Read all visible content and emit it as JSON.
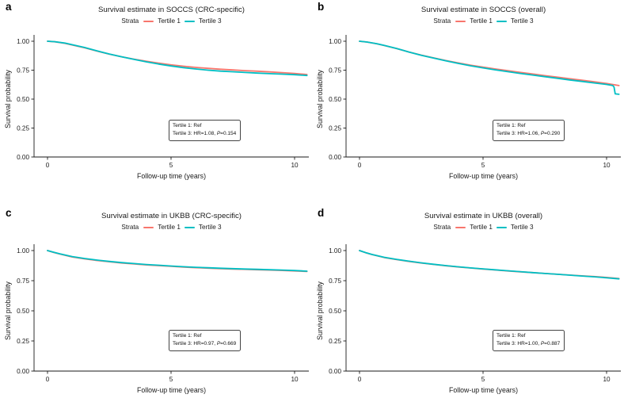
{
  "panel_labels": [
    "a",
    "b",
    "c",
    "d"
  ],
  "legend": {
    "title": "Strata",
    "items": [
      "Tertile 1",
      "Tertile 3"
    ]
  },
  "axes": {
    "x_label": "Follow-up time (years)",
    "y_label": "Survival probability",
    "y_ticks": [
      "1.00",
      "0.75",
      "0.50",
      "0.25",
      "0.00"
    ],
    "x_ticks": [
      "0",
      "5",
      "10"
    ]
  },
  "colors": {
    "tertile1": "#F8766D",
    "tertile3": "#00BFC4",
    "axis": "#1a1a1a"
  },
  "annotations": [
    {
      "line1": "Tertile 1: Ref",
      "line2_pre": "Tertile 3: HR=1.08, ",
      "p_italic": "P",
      "line2_post": "=0.154"
    },
    {
      "line1": "Tertile 1: Ref",
      "line2_pre": "Tertile 3: HR=1.06, ",
      "p_italic": "P",
      "line2_post": "=0.290"
    },
    {
      "line1": "Tertile 1: Ref",
      "line2_pre": "Tertile 3: HR=0.97, ",
      "p_italic": "P",
      "line2_post": "=0.669"
    },
    {
      "line1": "Tertile 1: Ref",
      "line2_pre": "Tertile 3: HR=1.00, ",
      "p_italic": "P",
      "line2_post": "=0.887"
    }
  ],
  "chart_data": [
    {
      "type": "line",
      "title": "Survival estimate in SOCCS (CRC-specific)",
      "xlabel": "Follow-up time (years)",
      "ylabel": "Survival probability",
      "xlim": [
        0,
        10.5
      ],
      "ylim": [
        0,
        1
      ],
      "x_tick_values": [
        0,
        5,
        10
      ],
      "y_tick_values": [
        1,
        0.75,
        0.5,
        0.25,
        0
      ],
      "legend_title": "Strata",
      "legend_position": "top",
      "grid": false,
      "annotation": [
        "Tertile 1: Ref",
        "Tertile 3: HR=1.08, P=0.154"
      ],
      "series": [
        {
          "name": "Tertile 1",
          "color": "#F8766D",
          "x": [
            0,
            0.3,
            0.7,
            1,
            1.5,
            2,
            2.5,
            3,
            3.5,
            4,
            4.5,
            5,
            5.5,
            6,
            6.5,
            7,
            7.5,
            8,
            8.5,
            9,
            9.5,
            10,
            10.5
          ],
          "y": [
            1.0,
            0.995,
            0.982,
            0.968,
            0.944,
            0.915,
            0.889,
            0.866,
            0.845,
            0.827,
            0.81,
            0.796,
            0.784,
            0.774,
            0.766,
            0.758,
            0.752,
            0.746,
            0.741,
            0.735,
            0.729,
            0.722,
            0.712
          ]
        },
        {
          "name": "Tertile 3",
          "color": "#00BFC4",
          "x": [
            0,
            0.3,
            0.7,
            1,
            1.5,
            2,
            2.5,
            3,
            3.5,
            4,
            4.5,
            5,
            5.5,
            6,
            6.5,
            7,
            7.5,
            8,
            8.5,
            9,
            9.5,
            10,
            10.5
          ],
          "y": [
            1.0,
            0.996,
            0.984,
            0.97,
            0.946,
            0.917,
            0.89,
            0.866,
            0.843,
            0.822,
            0.803,
            0.786,
            0.772,
            0.76,
            0.75,
            0.742,
            0.736,
            0.73,
            0.725,
            0.72,
            0.716,
            0.711,
            0.704
          ]
        }
      ]
    },
    {
      "type": "line",
      "title": "Survival estimate in SOCCS (overall)",
      "xlabel": "Follow-up time (years)",
      "ylabel": "Survival probability",
      "xlim": [
        0,
        10.5
      ],
      "ylim": [
        0,
        1
      ],
      "x_tick_values": [
        0,
        5,
        10
      ],
      "y_tick_values": [
        1,
        0.75,
        0.5,
        0.25,
        0
      ],
      "legend_title": "Strata",
      "legend_position": "top",
      "grid": false,
      "annotation": [
        "Tertile 1: Ref",
        "Tertile 3: HR=1.06, P=0.290"
      ],
      "series": [
        {
          "name": "Tertile 1",
          "color": "#F8766D",
          "x": [
            0,
            0.3,
            0.7,
            1,
            1.5,
            2,
            2.5,
            3,
            3.5,
            4,
            4.5,
            5,
            5.5,
            6,
            6.5,
            7,
            7.5,
            8,
            8.5,
            9,
            9.5,
            10,
            10.5
          ],
          "y": [
            1.0,
            0.993,
            0.978,
            0.963,
            0.937,
            0.907,
            0.88,
            0.856,
            0.833,
            0.812,
            0.793,
            0.776,
            0.76,
            0.745,
            0.731,
            0.717,
            0.703,
            0.69,
            0.676,
            0.663,
            0.649,
            0.635,
            0.617
          ]
        },
        {
          "name": "Tertile 3",
          "color": "#00BFC4",
          "x": [
            0,
            0.3,
            0.7,
            1,
            1.5,
            2,
            2.5,
            3,
            3.5,
            4,
            4.5,
            5,
            5.5,
            6,
            6.5,
            7,
            7.5,
            8,
            8.5,
            9,
            9.5,
            10,
            10.25,
            10.3,
            10.35,
            10.5
          ],
          "y": [
            1.0,
            0.993,
            0.979,
            0.964,
            0.938,
            0.907,
            0.879,
            0.854,
            0.83,
            0.808,
            0.788,
            0.77,
            0.753,
            0.737,
            0.722,
            0.708,
            0.694,
            0.68,
            0.666,
            0.653,
            0.64,
            0.627,
            0.617,
            0.605,
            0.545,
            0.542
          ]
        }
      ]
    },
    {
      "type": "line",
      "title": "Survival estimate in UKBB (CRC-specific)",
      "xlabel": "Follow-up time (years)",
      "ylabel": "Survival probability",
      "xlim": [
        0,
        10.5
      ],
      "ylim": [
        0,
        1
      ],
      "x_tick_values": [
        0,
        5,
        10
      ],
      "y_tick_values": [
        1,
        0.75,
        0.5,
        0.25,
        0
      ],
      "legend_title": "Strata",
      "legend_position": "top",
      "grid": false,
      "annotation": [
        "Tertile 1: Ref",
        "Tertile 3: HR=0.97, P=0.669"
      ],
      "series": [
        {
          "name": "Tertile 1",
          "color": "#F8766D",
          "x": [
            0,
            0.25,
            0.5,
            1,
            1.5,
            2,
            2.5,
            3,
            3.5,
            4,
            4.5,
            5,
            5.5,
            6,
            6.5,
            7,
            7.5,
            8,
            8.5,
            9,
            9.5,
            10,
            10.5
          ],
          "y": [
            1.0,
            0.984,
            0.971,
            0.947,
            0.931,
            0.918,
            0.907,
            0.897,
            0.889,
            0.881,
            0.875,
            0.869,
            0.863,
            0.858,
            0.854,
            0.85,
            0.847,
            0.844,
            0.841,
            0.838,
            0.835,
            0.831,
            0.826
          ]
        },
        {
          "name": "Tertile 3",
          "color": "#00BFC4",
          "x": [
            0,
            0.25,
            0.5,
            1,
            1.5,
            2,
            2.5,
            3,
            3.5,
            4,
            4.5,
            5,
            5.5,
            6,
            6.5,
            7,
            7.5,
            8,
            8.5,
            9,
            9.5,
            10,
            10.5
          ],
          "y": [
            1.0,
            0.986,
            0.973,
            0.95,
            0.934,
            0.921,
            0.91,
            0.9,
            0.892,
            0.884,
            0.878,
            0.872,
            0.866,
            0.861,
            0.857,
            0.853,
            0.85,
            0.847,
            0.844,
            0.841,
            0.838,
            0.834,
            0.829
          ]
        }
      ]
    },
    {
      "type": "line",
      "title": "Survival estimate in UKBB (overall)",
      "xlabel": "Follow-up time (years)",
      "ylabel": "Survival probability",
      "xlim": [
        0,
        10.5
      ],
      "ylim": [
        0,
        1
      ],
      "x_tick_values": [
        0,
        5,
        10
      ],
      "y_tick_values": [
        1,
        0.75,
        0.5,
        0.25,
        0
      ],
      "legend_title": "Strata",
      "legend_position": "top",
      "grid": false,
      "annotation": [
        "Tertile 1: Ref",
        "Tertile 3: HR=1.00, P=0.887"
      ],
      "series": [
        {
          "name": "Tertile 1",
          "color": "#F8766D",
          "x": [
            0,
            0.25,
            0.5,
            1,
            1.5,
            2,
            2.5,
            3,
            3.5,
            4,
            4.5,
            5,
            5.5,
            6,
            6.5,
            7,
            7.5,
            8,
            8.5,
            9,
            9.5,
            10,
            10.5
          ],
          "y": [
            1.0,
            0.982,
            0.967,
            0.942,
            0.925,
            0.91,
            0.897,
            0.885,
            0.874,
            0.864,
            0.855,
            0.847,
            0.839,
            0.831,
            0.824,
            0.817,
            0.81,
            0.803,
            0.797,
            0.79,
            0.784,
            0.777,
            0.768
          ]
        },
        {
          "name": "Tertile 3",
          "color": "#00BFC4",
          "x": [
            0,
            0.25,
            0.5,
            1,
            1.5,
            2,
            2.5,
            3,
            3.5,
            4,
            4.5,
            5,
            5.5,
            6,
            6.5,
            7,
            7.5,
            8,
            8.5,
            9,
            9.5,
            10,
            10.5
          ],
          "y": [
            1.0,
            0.983,
            0.968,
            0.944,
            0.927,
            0.912,
            0.898,
            0.886,
            0.875,
            0.865,
            0.856,
            0.848,
            0.84,
            0.832,
            0.825,
            0.817,
            0.81,
            0.803,
            0.796,
            0.789,
            0.782,
            0.774,
            0.765
          ]
        }
      ]
    }
  ]
}
